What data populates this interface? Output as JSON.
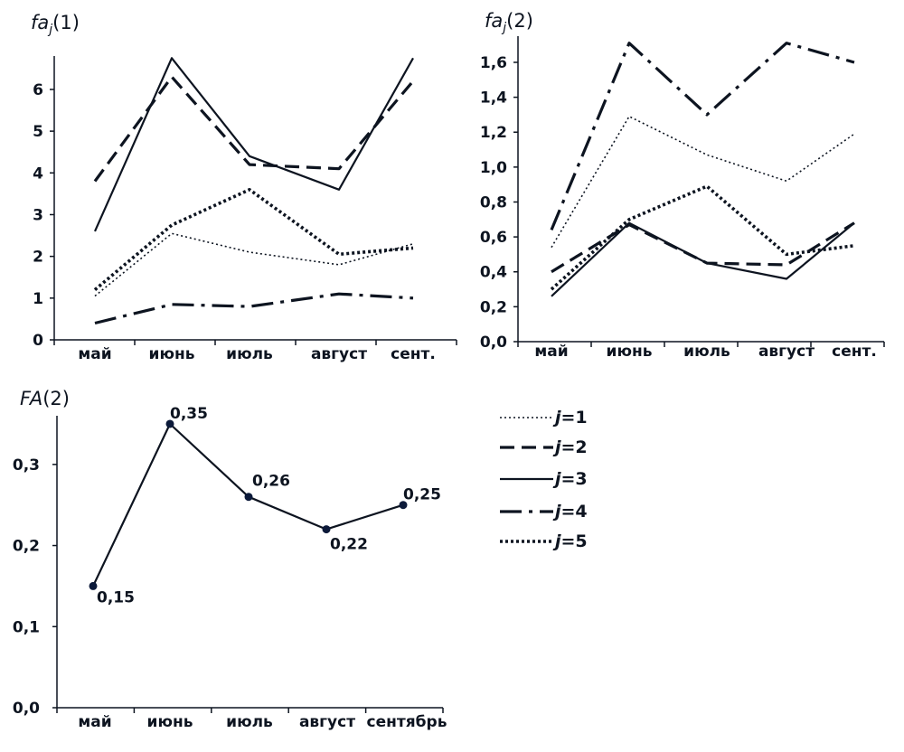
{
  "line_styles": {
    "j1": {
      "dash": "2,3",
      "width": 1.6
    },
    "j2": {
      "dash": "16,8",
      "width": 3.2
    },
    "j3": {
      "dash": "",
      "width": 2.2
    },
    "j4": {
      "dash": "24,8,4,8",
      "width": 3.2
    },
    "j5": {
      "dash": "3,3",
      "width": 3.6
    }
  },
  "colors": {
    "line": "#0d1420",
    "marker": "#0c1a3a",
    "text": "#0d1420"
  },
  "legend": {
    "entries": [
      {
        "series": "j1",
        "prefix": "j",
        "suffix": "=1"
      },
      {
        "series": "j2",
        "prefix": "j",
        "suffix": "=2"
      },
      {
        "series": "j3",
        "prefix": "j",
        "suffix": "=3"
      },
      {
        "series": "j4",
        "prefix": "j",
        "suffix": "=4"
      },
      {
        "series": "j5",
        "prefix": "j",
        "suffix": "=5"
      }
    ]
  },
  "chart_data": [
    {
      "id": "chart1",
      "type": "line",
      "title": {
        "main": "fa",
        "sub": "j",
        "tail": "(1)"
      },
      "categories": [
        "май",
        "июнь",
        "июль",
        "август",
        "сент."
      ],
      "ylim": [
        0,
        6.8
      ],
      "yticks": [
        0,
        1,
        2,
        3,
        4,
        5,
        6
      ],
      "ytick_labels": [
        "0",
        "1",
        "2",
        "3",
        "4",
        "5",
        "6"
      ],
      "series": [
        {
          "name": "j1",
          "values": [
            1.05,
            2.55,
            2.1,
            1.8,
            2.3
          ]
        },
        {
          "name": "j2",
          "values": [
            3.8,
            6.3,
            4.2,
            4.1,
            6.2
          ]
        },
        {
          "name": "j3",
          "values": [
            2.6,
            6.75,
            4.4,
            3.6,
            6.75
          ]
        },
        {
          "name": "j4",
          "values": [
            0.4,
            0.85,
            0.8,
            1.1,
            1.0
          ]
        },
        {
          "name": "j5",
          "values": [
            1.2,
            2.75,
            3.6,
            2.05,
            2.2
          ]
        }
      ]
    },
    {
      "id": "chart2",
      "type": "line",
      "title": {
        "main": "fa",
        "sub": "j",
        "tail": "(2)"
      },
      "categories": [
        "май",
        "июнь",
        "июль",
        "август",
        "сент."
      ],
      "ylim": [
        0,
        1.75
      ],
      "yticks": [
        0,
        0.2,
        0.4,
        0.6,
        0.8,
        1.0,
        1.2,
        1.4,
        1.6
      ],
      "ytick_labels": [
        "0,0",
        "0,2",
        "0,4",
        "0,6",
        "0,8",
        "1,0",
        "1,2",
        "1,4",
        "1,6"
      ],
      "series": [
        {
          "name": "j1",
          "values": [
            0.54,
            1.29,
            1.07,
            0.92,
            1.19
          ]
        },
        {
          "name": "j2",
          "values": [
            0.4,
            0.67,
            0.45,
            0.44,
            0.68
          ]
        },
        {
          "name": "j3",
          "values": [
            0.26,
            0.68,
            0.45,
            0.36,
            0.68
          ]
        },
        {
          "name": "j4",
          "values": [
            0.64,
            1.71,
            1.3,
            1.71,
            1.6
          ]
        },
        {
          "name": "j5",
          "values": [
            0.3,
            0.7,
            0.89,
            0.5,
            0.55
          ]
        }
      ]
    },
    {
      "id": "chart3",
      "type": "line",
      "title": {
        "main": "FA",
        "sub": "",
        "tail": "(2)"
      },
      "categories": [
        "май",
        "июнь",
        "июль",
        "август",
        "сентябрь"
      ],
      "ylim": [
        0,
        0.36
      ],
      "yticks": [
        0,
        0.1,
        0.2,
        0.3
      ],
      "ytick_labels": [
        "0,0",
        "0,1",
        "0,2",
        "0,3"
      ],
      "series": [
        {
          "name": "FA",
          "values": [
            0.15,
            0.35,
            0.26,
            0.22,
            0.25
          ],
          "data_labels": [
            "0,15",
            "0,35",
            "0,26",
            "0,22",
            "0,25"
          ]
        }
      ]
    }
  ]
}
